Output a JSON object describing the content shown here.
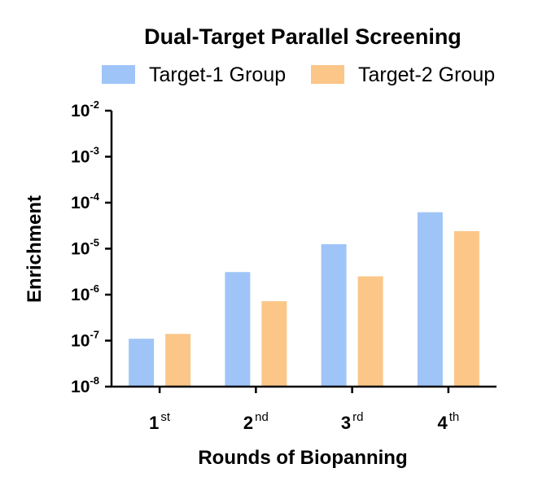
{
  "chart_data": {
    "type": "bar",
    "title": "Dual-Target Parallel Screening",
    "xlabel": "Rounds of Biopanning",
    "ylabel": "Enrichment",
    "yscale": "log",
    "ylim": [
      1e-08,
      0.01
    ],
    "yticks": [
      {
        "base": "10",
        "exp": "-2"
      },
      {
        "base": "10",
        "exp": "-3"
      },
      {
        "base": "10",
        "exp": "-4"
      },
      {
        "base": "10",
        "exp": "-5"
      },
      {
        "base": "10",
        "exp": "-6"
      },
      {
        "base": "10",
        "exp": "-7"
      },
      {
        "base": "10",
        "exp": "-8"
      }
    ],
    "categories": [
      {
        "main": "1",
        "sup": "st"
      },
      {
        "main": "2",
        "sup": "nd"
      },
      {
        "main": "3",
        "sup": "rd"
      },
      {
        "main": "4",
        "sup": "th"
      }
    ],
    "series": [
      {
        "name": "Target-1 Group",
        "color": "#9fc5f8",
        "values": [
          1.1e-07,
          3.1e-06,
          1.25e-05,
          6.2e-05
        ]
      },
      {
        "name": "Target-2 Group",
        "color": "#fbc688",
        "values": [
          1.4e-07,
          7.2e-07,
          2.5e-06,
          2.4e-05
        ]
      }
    ],
    "legend_position": "top",
    "grid": false
  }
}
